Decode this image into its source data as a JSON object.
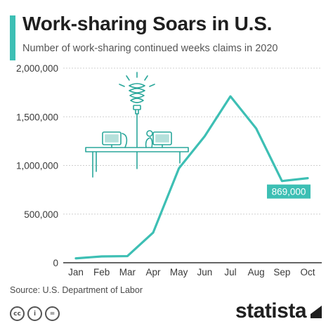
{
  "header": {
    "title": "Work-sharing Soars in U.S.",
    "subtitle": "Number of work-sharing continued weeks claims in 2020"
  },
  "footer": {
    "source": "Source: U.S. Department of Labor",
    "license_icons": [
      {
        "name": "cc-icon",
        "text": "cc"
      },
      {
        "name": "attribution-icon",
        "text": "i"
      },
      {
        "name": "no-derivatives-icon",
        "text": "="
      }
    ],
    "brand": "statista"
  },
  "colors": {
    "accent": "#3dbfb4",
    "line": "#3dbfb4",
    "grid": "#cfcfcf",
    "text": "#3a3a3a",
    "illustration": "#2aa79b"
  },
  "chart_data": {
    "type": "line",
    "title": "Work-sharing Soars in U.S.",
    "subtitle": "Number of work-sharing continued weeks claims in 2020",
    "categories": [
      "Jan",
      "Feb",
      "Mar",
      "Apr",
      "May",
      "Jun",
      "Jul",
      "Aug",
      "Sep",
      "Oct"
    ],
    "series": [
      {
        "values": [
          45000,
          65000,
          68000,
          310000,
          970000,
          1300000,
          1710000,
          1380000,
          840000,
          869000
        ]
      }
    ],
    "y_ticks": [
      "0",
      "500,000",
      "1,000,000",
      "1,500,000",
      "2,000,000"
    ],
    "ylim": [
      0,
      2000000
    ],
    "grid": true,
    "annotation": {
      "category": "Oct",
      "label": "869,000"
    }
  }
}
